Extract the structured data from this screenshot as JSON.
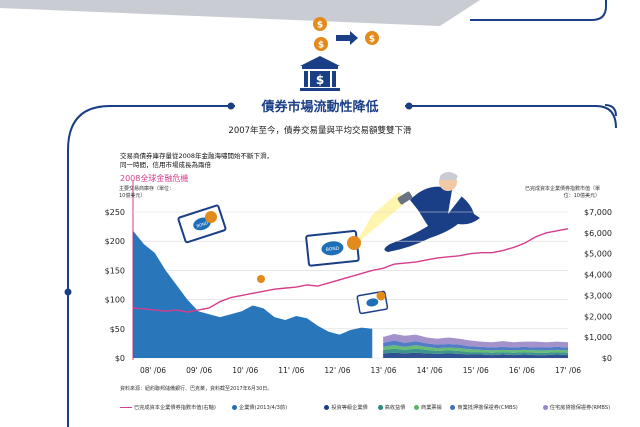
{
  "header": {
    "title": "債券市場流動性降低",
    "subtitle": "2007年至今，債券交易量與平均交易額雙雙下滑"
  },
  "annotations": {
    "note_line1": "交易商債券庫存量從2008年金融海嘯開始不斷下滑，",
    "note_line2": "同一時間，信用市場成長為兩倍",
    "crisis": "2008全球金融危機"
  },
  "axes": {
    "left_title": "主要交易商庫存（單位：10億美元）",
    "right_title": "已完成資本企業債券指數市值（單位：10億美元）"
  },
  "source": {
    "line1": "資料來源：紐約聯邦儲備銀行、巴克萊，資料截至2017年6月30日。",
    "line2": ""
  },
  "icons": {
    "bond_label": "BOND"
  },
  "colors": {
    "navy": "#1b3f86",
    "primary_blue": "#1e6fb7",
    "pink": "#d63d8c",
    "teal": "#2a8a80",
    "green": "#57b564",
    "purple": "#9a86c6",
    "gold": "#e28a1a"
  },
  "chart_data": {
    "type": "area",
    "x_tick_labels": [
      "08' /06",
      "09' /06",
      "10' /06",
      "11' /06",
      "12' /06",
      "13' /06",
      "14' /06",
      "15' /06",
      "16' /06",
      "17' /06"
    ],
    "x": [
      2007.5,
      2007.75,
      2008.0,
      2008.25,
      2008.5,
      2008.75,
      2009.0,
      2009.25,
      2009.5,
      2009.75,
      2010.0,
      2010.25,
      2010.5,
      2010.75,
      2011.0,
      2011.25,
      2011.5,
      2011.75,
      2012.0,
      2012.25,
      2012.5,
      2012.75,
      2013.0,
      2013.25,
      2013.5,
      2013.75,
      2014.0,
      2014.25,
      2014.5,
      2014.75,
      2015.0,
      2015.25,
      2015.5,
      2015.75,
      2016.0,
      2016.25,
      2016.5,
      2016.75,
      2017.0,
      2017.25,
      2017.5
    ],
    "ylim_left": [
      0,
      250
    ],
    "left_ticks": [
      "$0",
      "$50",
      "$100",
      "$150",
      "$200",
      "$250"
    ],
    "ylim_right": [
      0,
      7000
    ],
    "right_ticks": [
      "$0",
      "$1,000",
      "$2,000",
      "$3,000",
      "$4,000",
      "$5,000",
      "$6,000",
      "$7,000"
    ],
    "grid": true,
    "legend_position": "bottom",
    "series": [
      {
        "name": "企業債(2013/4/3前)",
        "axis": "left",
        "kind": "area",
        "color": "#1e6fb7",
        "values": [
          218,
          195,
          180,
          150,
          125,
          100,
          80,
          75,
          70,
          75,
          80,
          90,
          85,
          70,
          65,
          72,
          68,
          55,
          45,
          40,
          48,
          52,
          50,
          null,
          null,
          null,
          null,
          null,
          null,
          null,
          null,
          null,
          null,
          null,
          null,
          null,
          null,
          null,
          null,
          null,
          null
        ]
      },
      {
        "name": "投資等級企業債",
        "axis": "left",
        "kind": "stack",
        "color": "#1b3f86",
        "values": [
          null,
          null,
          null,
          null,
          null,
          null,
          null,
          null,
          null,
          null,
          null,
          null,
          null,
          null,
          null,
          null,
          null,
          null,
          null,
          null,
          null,
          null,
          null,
          8,
          9,
          8,
          9,
          8,
          7,
          8,
          7,
          6,
          6,
          5,
          6,
          5,
          6,
          5,
          5,
          6,
          5
        ]
      },
      {
        "name": "高收益債",
        "axis": "left",
        "kind": "stack",
        "color": "#2a8a80",
        "values": [
          null,
          null,
          null,
          null,
          null,
          null,
          null,
          null,
          null,
          null,
          null,
          null,
          null,
          null,
          null,
          null,
          null,
          null,
          null,
          null,
          null,
          null,
          null,
          6,
          7,
          6,
          7,
          6,
          5,
          5,
          5,
          4,
          4,
          4,
          4,
          4,
          4,
          4,
          4,
          4,
          4
        ]
      },
      {
        "name": "商業票據",
        "axis": "left",
        "kind": "stack",
        "color": "#57b564",
        "values": [
          null,
          null,
          null,
          null,
          null,
          null,
          null,
          null,
          null,
          null,
          null,
          null,
          null,
          null,
          null,
          null,
          null,
          null,
          null,
          null,
          null,
          null,
          null,
          5,
          6,
          5,
          6,
          5,
          5,
          5,
          5,
          5,
          4,
          4,
          4,
          4,
          4,
          4,
          4,
          4,
          4
        ]
      },
      {
        "name": "商業抵押擔保證券(CMBS)",
        "axis": "left",
        "kind": "stack",
        "color": "#3f6fc0",
        "values": [
          null,
          null,
          null,
          null,
          null,
          null,
          null,
          null,
          null,
          null,
          null,
          null,
          null,
          null,
          null,
          null,
          null,
          null,
          null,
          null,
          null,
          null,
          null,
          7,
          8,
          7,
          7,
          6,
          6,
          6,
          6,
          5,
          5,
          5,
          5,
          5,
          5,
          5,
          5,
          5,
          5
        ]
      },
      {
        "name": "住宅房貸擔保證券(RMBS)",
        "axis": "left",
        "kind": "stack",
        "color": "#9a86c6",
        "values": [
          null,
          null,
          null,
          null,
          null,
          null,
          null,
          null,
          null,
          null,
          null,
          null,
          null,
          null,
          null,
          null,
          null,
          null,
          null,
          null,
          null,
          null,
          null,
          10,
          11,
          12,
          11,
          10,
          10,
          11,
          10,
          10,
          9,
          9,
          10,
          9,
          9,
          10,
          9,
          9,
          9
        ]
      },
      {
        "name": "已完成資本企業債券指數市值(右軸)",
        "axis": "right",
        "kind": "line",
        "color": "#d63d8c",
        "values": [
          2400,
          2350,
          2300,
          2250,
          2300,
          2200,
          2300,
          2400,
          2700,
          2900,
          3000,
          3100,
          3200,
          3300,
          3350,
          3400,
          3500,
          3450,
          3600,
          3750,
          3900,
          4050,
          4200,
          4300,
          4500,
          4550,
          4600,
          4700,
          4800,
          4850,
          4900,
          5000,
          5050,
          5050,
          5150,
          5300,
          5500,
          5800,
          6000,
          6100,
          6200
        ]
      }
    ]
  }
}
